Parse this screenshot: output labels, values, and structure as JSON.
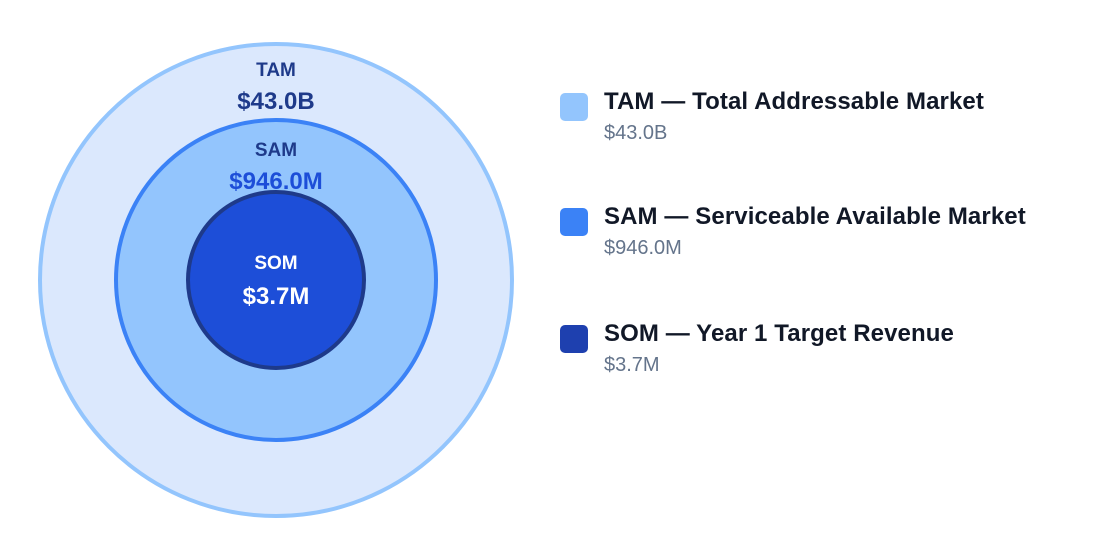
{
  "colors": {
    "tam_fill": "#dbe8fd",
    "tam_stroke": "#93c5fd",
    "sam_fill": "#93c5fd",
    "sam_stroke": "#3b82f6",
    "som_fill": "#1d4ed8",
    "som_stroke": "#1e3a8a",
    "tam_text": "#1e3a8a",
    "sam_text": "#1e3a8a",
    "som_text": "#ffffff",
    "swatch_tam": "#93c5fd",
    "swatch_sam": "#3b82f6",
    "swatch_som": "#1e40af"
  },
  "circles": {
    "tam": {
      "label": "TAM",
      "value": "$43.0B"
    },
    "sam": {
      "label": "SAM",
      "value": "$946.0M"
    },
    "som": {
      "label": "SOM",
      "value": "$3.7M"
    }
  },
  "legend": [
    {
      "title": "TAM — Total Addressable Market",
      "value": "$43.0B"
    },
    {
      "title": "SAM — Serviceable Available Market",
      "value": "$946.0M"
    },
    {
      "title": "SOM — Year 1 Target Revenue",
      "value": "$3.7M"
    }
  ]
}
